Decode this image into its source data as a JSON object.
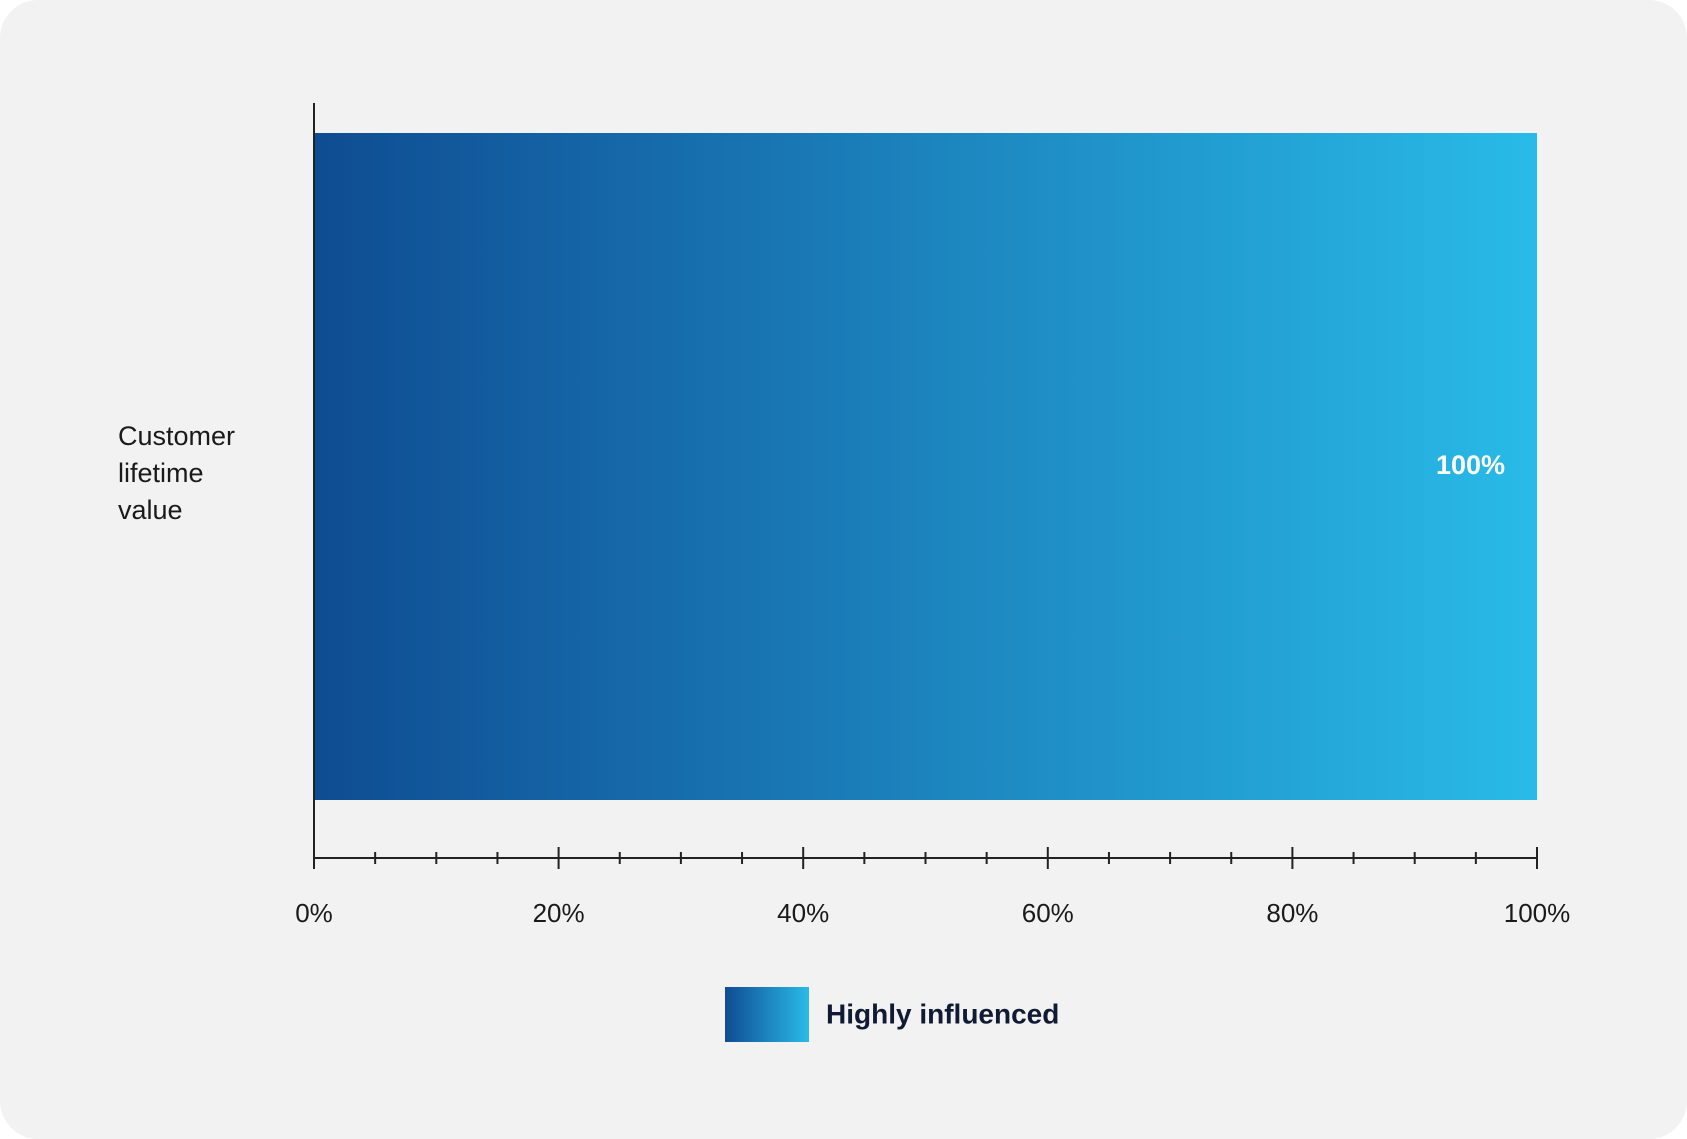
{
  "chart_data": {
    "type": "bar",
    "orientation": "horizontal",
    "categories": [
      "Customer lifetime value"
    ],
    "series": [
      {
        "name": "Highly influenced",
        "gradient": [
          "#0f4c92",
          "#29bbe8"
        ],
        "values": [
          100
        ],
        "value_labels": [
          "100%"
        ]
      }
    ],
    "xlim": [
      0,
      100
    ],
    "xticks": [
      {
        "value": 0,
        "label": "0%"
      },
      {
        "value": 20,
        "label": "20%"
      },
      {
        "value": 40,
        "label": "40%"
      },
      {
        "value": 60,
        "label": "60%"
      },
      {
        "value": 80,
        "label": "80%"
      },
      {
        "value": 100,
        "label": "100%"
      }
    ],
    "xminorticks": [
      5,
      10,
      15,
      25,
      30,
      35,
      45,
      50,
      55,
      65,
      70,
      75,
      85,
      90,
      95
    ],
    "legend": "bottom"
  }
}
